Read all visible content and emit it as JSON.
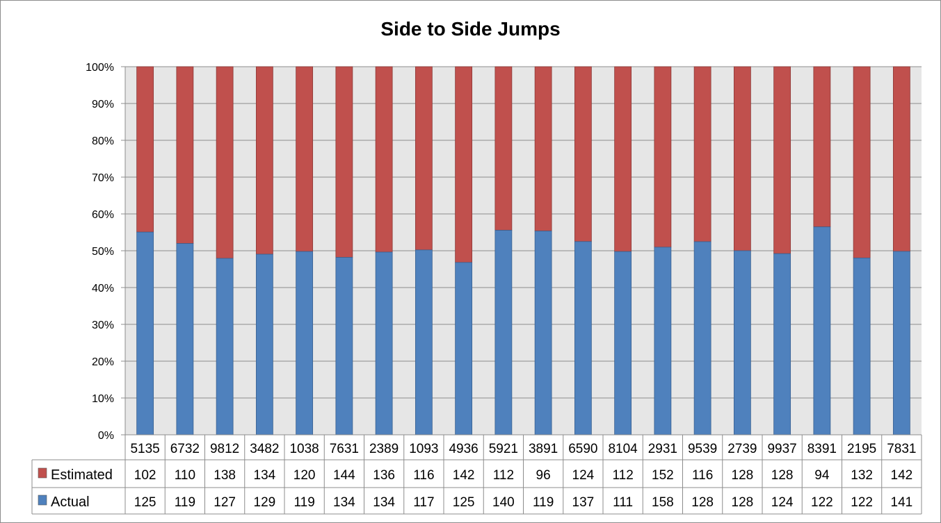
{
  "chart_data": {
    "type": "bar",
    "stacked": "percent",
    "title": "Side to Side Jumps",
    "xlabel": "",
    "ylabel": "",
    "ylim": [
      0,
      100
    ],
    "yticks": [
      "0%",
      "10%",
      "20%",
      "30%",
      "40%",
      "50%",
      "60%",
      "70%",
      "80%",
      "90%",
      "100%"
    ],
    "grid": true,
    "legend_placement": "data-table-left",
    "categories": [
      "5135",
      "6732",
      "9812",
      "3482",
      "1038",
      "7631",
      "2389",
      "1093",
      "4936",
      "5921",
      "3891",
      "6590",
      "8104",
      "2931",
      "9539",
      "2739",
      "9937",
      "8391",
      "2195",
      "7831"
    ],
    "series": [
      {
        "name": "Estimated",
        "color": "#c0504d",
        "values": [
          102,
          110,
          138,
          134,
          120,
          144,
          136,
          116,
          142,
          112,
          96,
          124,
          112,
          152,
          116,
          128,
          128,
          94,
          132,
          142
        ]
      },
      {
        "name": "Actual",
        "color": "#4f81bd",
        "values": [
          125,
          119,
          127,
          129,
          119,
          134,
          134,
          117,
          125,
          140,
          119,
          137,
          111,
          158,
          128,
          128,
          124,
          122,
          122,
          141
        ]
      }
    ]
  }
}
